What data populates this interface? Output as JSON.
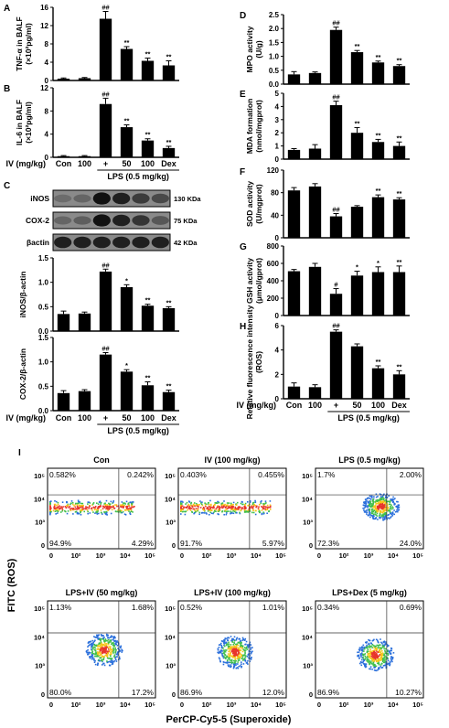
{
  "chart_data": [
    {
      "panel": "A",
      "type": "bar",
      "ylabel": "TNF-α in BALF (×10²pg/ml)",
      "categories": [
        "Con",
        "100",
        "+",
        "50",
        "100",
        "Dex"
      ],
      "values": [
        0.4,
        0.5,
        13.5,
        6.9,
        4.3,
        3.3
      ],
      "errors": [
        0.15,
        0.15,
        1.6,
        0.5,
        0.6,
        1.0
      ],
      "labels": [
        "",
        "",
        "##",
        "**",
        "**",
        "**"
      ],
      "ylim": [
        0,
        16
      ],
      "yticks": [
        "0",
        "4",
        "8",
        "12",
        "16"
      ],
      "ticks": [
        0,
        4,
        8,
        12,
        16
      ]
    },
    {
      "panel": "B",
      "type": "bar",
      "ylabel": "IL-6 in BALF (×10²pg/ml)",
      "categories": [
        "Con",
        "100",
        "+",
        "50",
        "100",
        "Dex"
      ],
      "values": [
        0.2,
        0.2,
        9.2,
        5.2,
        2.9,
        1.6
      ],
      "errors": [
        0.1,
        0.1,
        1.0,
        0.4,
        0.3,
        0.3
      ],
      "labels": [
        "",
        "",
        "##",
        "**",
        "**",
        "**"
      ],
      "ylim": [
        0,
        12
      ],
      "yticks": [
        "0",
        "4",
        "8",
        "12"
      ],
      "ticks": [
        0,
        4,
        8,
        12
      ]
    },
    {
      "panel": "C1",
      "type": "bar",
      "ylabel": "iNOS/β-actin",
      "categories": [
        "Con",
        "100",
        "+",
        "50",
        "100",
        "Dex"
      ],
      "values": [
        0.35,
        0.36,
        1.22,
        0.9,
        0.52,
        0.47
      ],
      "errors": [
        0.06,
        0.03,
        0.05,
        0.05,
        0.03,
        0.03
      ],
      "labels": [
        "",
        "",
        "##",
        "*",
        "**",
        "**"
      ],
      "ylim": [
        0,
        1.5
      ],
      "yticks": [
        "0.0",
        "0.5",
        "1.0",
        "1.5"
      ],
      "ticks": [
        0,
        0.5,
        1.0,
        1.5
      ]
    },
    {
      "panel": "C2",
      "type": "bar",
      "ylabel": "COX-2/β-actin",
      "categories": [
        "Con",
        "100",
        "+",
        "50",
        "100",
        "Dex"
      ],
      "values": [
        0.36,
        0.4,
        1.15,
        0.8,
        0.52,
        0.38
      ],
      "errors": [
        0.05,
        0.03,
        0.04,
        0.04,
        0.07,
        0.04
      ],
      "labels": [
        "",
        "",
        "##",
        "*",
        "**",
        "**"
      ],
      "ylim": [
        0,
        1.5
      ],
      "yticks": [
        "0.0",
        "0.5",
        "1.0",
        "1.5"
      ],
      "ticks": [
        0,
        0.5,
        1.0,
        1.5
      ]
    },
    {
      "panel": "D",
      "type": "bar",
      "ylabel": "MPO activity (U/g)",
      "categories": [
        "Con",
        "100",
        "+",
        "50",
        "100",
        "Dex"
      ],
      "values": [
        0.35,
        0.4,
        1.95,
        1.15,
        0.78,
        0.65
      ],
      "errors": [
        0.1,
        0.04,
        0.1,
        0.06,
        0.05,
        0.05
      ],
      "labels": [
        "",
        "",
        "##",
        "**",
        "**",
        "**"
      ],
      "ylim": [
        0,
        2.5
      ],
      "yticks": [
        "0.0",
        "0.5",
        "1.0",
        "1.5",
        "2.0",
        "2.5"
      ],
      "ticks": [
        0,
        0.5,
        1.0,
        1.5,
        2.0,
        2.5
      ]
    },
    {
      "panel": "E",
      "type": "bar",
      "ylabel": "MDA formation (nmol/mgprot)",
      "categories": [
        "Con",
        "100",
        "+",
        "50",
        "100",
        "Dex"
      ],
      "values": [
        0.7,
        0.8,
        4.1,
        2.0,
        1.3,
        1.0
      ],
      "errors": [
        0.1,
        0.3,
        0.3,
        0.4,
        0.2,
        0.3
      ],
      "labels": [
        "",
        "",
        "##",
        "**",
        "**",
        "**"
      ],
      "ylim": [
        0,
        5
      ],
      "yticks": [
        "0",
        "1",
        "2",
        "3",
        "4",
        "5"
      ],
      "ticks": [
        0,
        1,
        2,
        3,
        4,
        5
      ]
    },
    {
      "panel": "F",
      "type": "bar",
      "ylabel": "SOD activity (U/mgprot)",
      "categories": [
        "Con",
        "100",
        "+",
        "50",
        "100",
        "Dex"
      ],
      "values": [
        84,
        91,
        38,
        55,
        72,
        68
      ],
      "errors": [
        5,
        5,
        5,
        2,
        4,
        3
      ],
      "labels": [
        "",
        "",
        "##",
        "",
        "**",
        "**"
      ],
      "ylim": [
        0,
        120
      ],
      "yticks": [
        "0",
        "40",
        "80",
        "120"
      ],
      "ticks": [
        0,
        40,
        80,
        120
      ]
    },
    {
      "panel": "G",
      "type": "bar",
      "ylabel": "GSH activity (μmol/gprot)",
      "categories": [
        "Con",
        "100",
        "+",
        "50",
        "100",
        "Dex"
      ],
      "values": [
        510,
        560,
        250,
        460,
        500,
        500
      ],
      "errors": [
        20,
        40,
        60,
        50,
        60,
        70
      ],
      "labels": [
        "",
        "",
        "#",
        "*",
        "*",
        "**"
      ],
      "ylim": [
        0,
        800
      ],
      "yticks": [
        "0",
        "200",
        "400",
        "600",
        "800"
      ],
      "ticks": [
        0,
        200,
        400,
        600,
        800
      ]
    },
    {
      "panel": "H",
      "type": "bar",
      "ylabel": "Relative fluorescence intensity (ROS)",
      "categories": [
        "Con",
        "100",
        "+",
        "50",
        "100",
        "Dex"
      ],
      "values": [
        1.0,
        0.95,
        5.5,
        4.3,
        2.5,
        2.0
      ],
      "errors": [
        0.3,
        0.2,
        0.15,
        0.2,
        0.2,
        0.3
      ],
      "labels": [
        "",
        "",
        "##",
        "",
        "**",
        "**"
      ],
      "ylim": [
        0,
        6
      ],
      "yticks": [
        "0",
        "2",
        "4",
        "6"
      ],
      "ticks": [
        0,
        2,
        4,
        6
      ]
    }
  ],
  "labels": {
    "A": "A",
    "B": "B",
    "C": "C",
    "D": "D",
    "E": "E",
    "F": "F",
    "G": "G",
    "H": "H",
    "I": "I"
  },
  "group": {
    "iv_label": "IV (mg/kg)",
    "lps_label": "LPS (0.5 mg/kg)",
    "categories": [
      "Con",
      "100",
      "+",
      "50",
      "100",
      "Dex"
    ]
  },
  "blot": {
    "rows": [
      {
        "name": "iNOS",
        "kda": "130 KDa",
        "intensity": [
          0.3,
          0.35,
          0.95,
          0.85,
          0.65,
          0.55
        ]
      },
      {
        "name": "COX-2",
        "kda": "75 KDa",
        "intensity": [
          0.35,
          0.4,
          0.95,
          0.85,
          0.7,
          0.45
        ]
      },
      {
        "name": "βactin",
        "kda": "42 KDa",
        "intensity": [
          0.85,
          0.85,
          0.85,
          0.85,
          0.85,
          0.85
        ]
      }
    ]
  },
  "flow": {
    "ylabel": "FITC (ROS)",
    "xlabel": "PerCP-Cy5-5 (Superoxide)",
    "xticks": [
      "0",
      "10²",
      "10³",
      "10⁴",
      "10⁵"
    ],
    "yticks": [
      "0",
      "10³",
      "10⁴",
      "10⁵"
    ],
    "panels": [
      {
        "title": "Con",
        "ul": "0.582%",
        "ur": "0.242%",
        "ll": "94.9%",
        "lr": "4.29%",
        "cx": 0.35,
        "cy": 0.48,
        "shape": "band"
      },
      {
        "title": "IV (100 mg/kg)",
        "ul": "0.403%",
        "ur": "0.455%",
        "ll": "91.7%",
        "lr": "5.97%",
        "cx": 0.4,
        "cy": 0.48,
        "shape": "band"
      },
      {
        "title": "LPS (0.5 mg/kg)",
        "ul": "1.7%",
        "ur": "2.00%",
        "ll": "72.3%",
        "lr": "24.0%",
        "cx": 0.6,
        "cy": 0.47,
        "shape": "blob"
      },
      {
        "title": "LPS+IV (50 mg/kg)",
        "ul": "1.13%",
        "ur": "1.68%",
        "ll": "80.0%",
        "lr": "17.2%",
        "cx": 0.52,
        "cy": 0.5,
        "shape": "blob"
      },
      {
        "title": "LPS+IV (100 mg/kg)",
        "ul": "0.52%",
        "ur": "1.01%",
        "ll": "86.9%",
        "lr": "12.0%",
        "cx": 0.52,
        "cy": 0.52,
        "shape": "blob"
      },
      {
        "title": "LPS+Dex (5 mg/kg)",
        "ul": "0.34%",
        "ur": "0.69%",
        "ll": "86.9%",
        "lr": "10.27%",
        "cx": 0.55,
        "cy": 0.55,
        "shape": "blob"
      }
    ]
  }
}
